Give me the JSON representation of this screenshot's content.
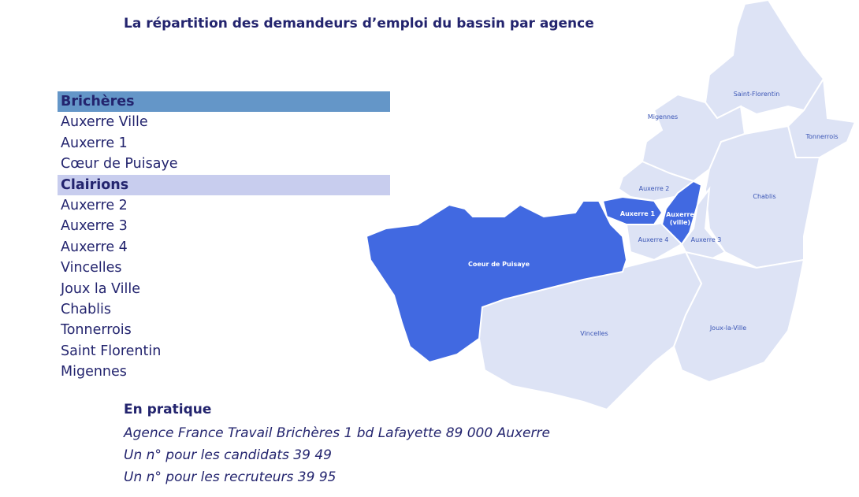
{
  "header": {
    "title": "La répartition des demandeurs d’emploi du bassin par agence"
  },
  "groups": [
    {
      "name": "Brichères",
      "items": [
        "Auxerre Ville",
        "Auxerre 1",
        "Cœur de Puisaye"
      ]
    },
    {
      "name": "Clairions",
      "items": [
        "Auxerre 2",
        "Auxerre 3",
        "Auxerre 4",
        "Vincelles",
        "Joux la Ville",
        "Chablis",
        "Tonnerrois",
        "Saint Florentin",
        "Migennes"
      ]
    }
  ],
  "map": {
    "labels": [
      "Saint-Florentin",
      "Migennes",
      "Tonnerrois",
      "Chablis",
      "Auxerre 2",
      "Auxerre 1",
      "Auxerre 4",
      "Auxerre 3",
      "Coeur de Puisaye",
      "Vincelles",
      "Joux-la-Ville"
    ],
    "ville_label": [
      "Auxerre",
      "(ville)"
    ]
  },
  "practical": {
    "title": "En pratique",
    "lines": [
      "Agence France Travail Brichères 1 bd Lafayette 89 000 Auxerre",
      "Un n° pour les candidats 39 49",
      "Un n° pour les recruteurs 39 95"
    ]
  }
}
